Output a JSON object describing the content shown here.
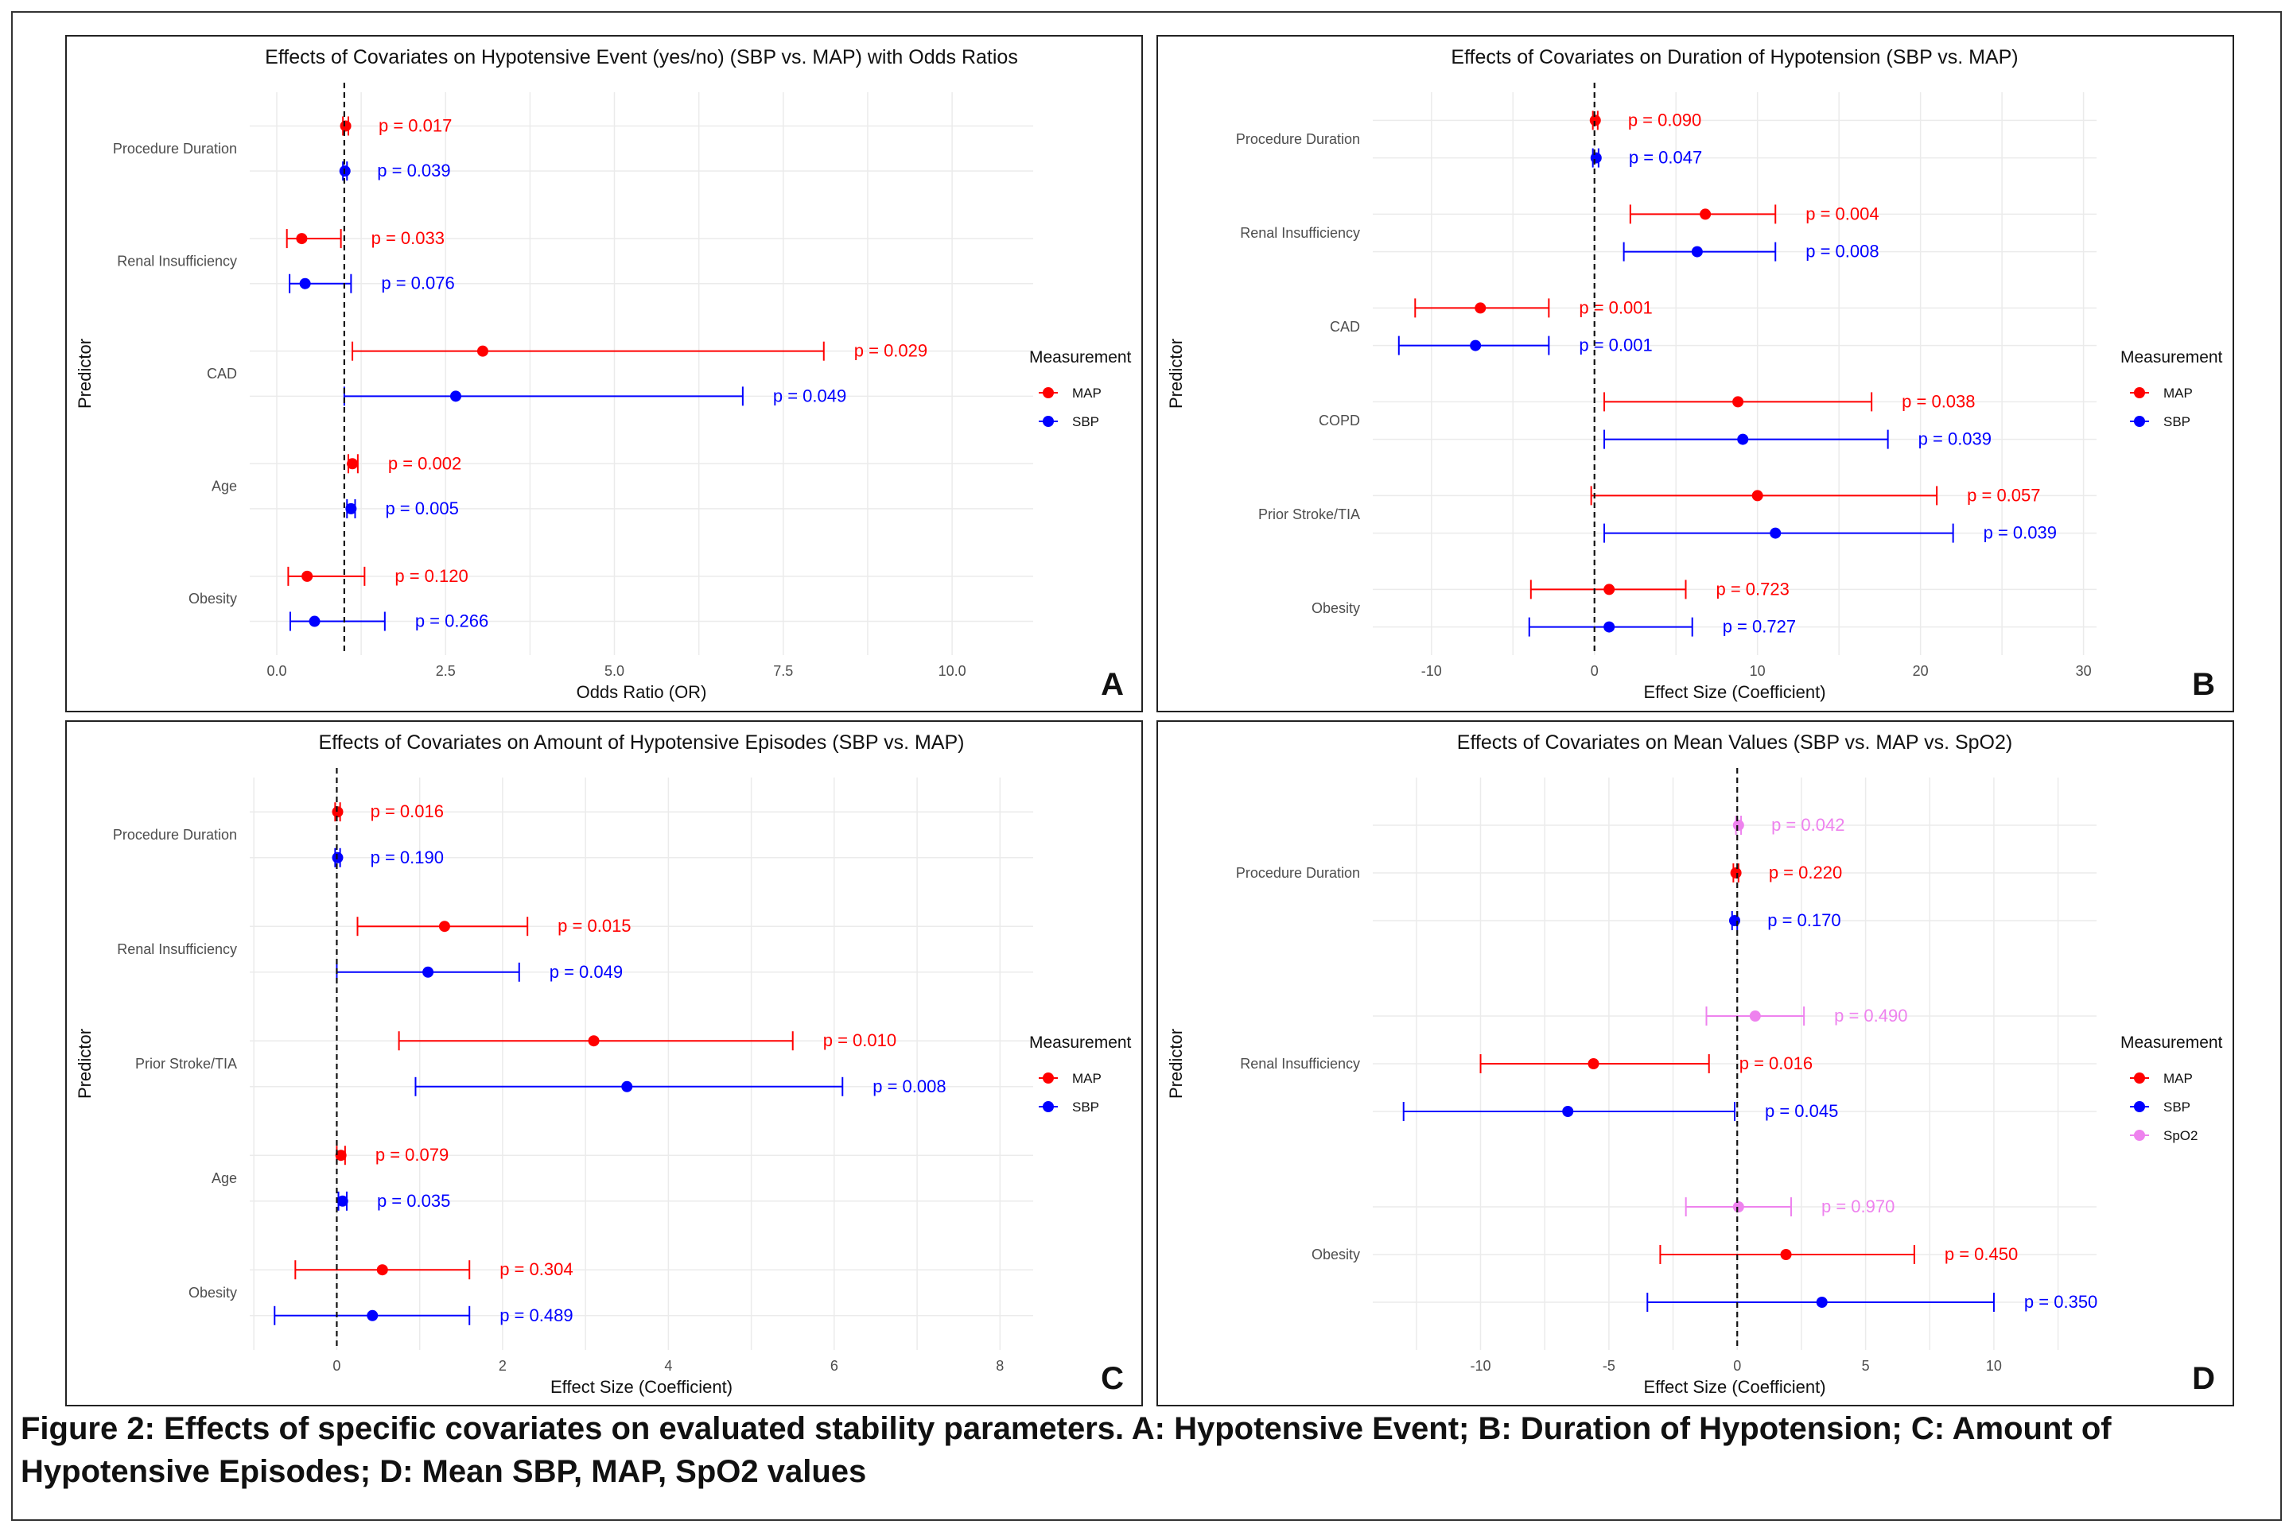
{
  "colors": {
    "MAP": "#ff0000",
    "SBP": "#0000ff",
    "SpO2": "#ee82ee"
  },
  "caption": "Figure 2: Effects of specific covariates on evaluated stability parameters. A: Hypotensive Event; B: Duration of Hypotension; C: Amount of Hypotensive Episodes; D: Mean SBP, MAP, SpO2 values",
  "chart_data": [
    {
      "panel_letter": "A",
      "type": "forest",
      "title": "Effects of Covariates on Hypotensive Event (yes/no) (SBP vs. MAP) with Odds Ratios",
      "xlabel": "Odds Ratio (OR)",
      "ylabel": "Predictor",
      "xlim": [
        -0.4,
        11.2
      ],
      "xticks": [
        0,
        2.5,
        5,
        7.5,
        10
      ],
      "xtick_labels": [
        "0.0",
        "2.5",
        "5.0",
        "7.5",
        "10.0"
      ],
      "ref_line": 1,
      "grid": true,
      "legend_title": "Measurement",
      "legend": [
        "MAP",
        "SBP"
      ],
      "legend_position": "right",
      "predictors": [
        "Procedure Duration",
        "Renal Insufficiency",
        "CAD",
        "Age",
        "Obesity"
      ],
      "series": [
        {
          "name": "MAP",
          "points": [
            {
              "predictor": "Procedure Duration",
              "estimate": 1.02,
              "lower": 0.98,
              "upper": 1.06,
              "p_label": "p = 0.017"
            },
            {
              "predictor": "Renal Insufficiency",
              "estimate": 0.37,
              "lower": 0.15,
              "upper": 0.95,
              "p_label": "p = 0.033"
            },
            {
              "predictor": "CAD",
              "estimate": 3.05,
              "lower": 1.12,
              "upper": 8.1,
              "p_label": "p = 0.029"
            },
            {
              "predictor": "Age",
              "estimate": 1.12,
              "lower": 1.06,
              "upper": 1.2,
              "p_label": "p = 0.002"
            },
            {
              "predictor": "Obesity",
              "estimate": 0.45,
              "lower": 0.17,
              "upper": 1.3,
              "p_label": "p = 0.120"
            }
          ]
        },
        {
          "name": "SBP",
          "points": [
            {
              "predictor": "Procedure Duration",
              "estimate": 1.01,
              "lower": 0.98,
              "upper": 1.04,
              "p_label": "p = 0.039"
            },
            {
              "predictor": "Renal Insufficiency",
              "estimate": 0.42,
              "lower": 0.19,
              "upper": 1.1,
              "p_label": "p = 0.076"
            },
            {
              "predictor": "CAD",
              "estimate": 2.65,
              "lower": 1.0,
              "upper": 6.9,
              "p_label": "p = 0.049"
            },
            {
              "predictor": "Age",
              "estimate": 1.1,
              "lower": 1.04,
              "upper": 1.16,
              "p_label": "p = 0.005"
            },
            {
              "predictor": "Obesity",
              "estimate": 0.56,
              "lower": 0.2,
              "upper": 1.6,
              "p_label": "p = 0.266"
            }
          ]
        }
      ]
    },
    {
      "panel_letter": "B",
      "type": "forest",
      "title": "Effects of Covariates on Duration of Hypotension (SBP vs. MAP)",
      "xlabel": "Effect Size (Coefficient)",
      "ylabel": "Predictor",
      "xlim": [
        -13.6,
        30.8
      ],
      "xticks": [
        -10,
        0,
        10,
        20,
        30
      ],
      "xtick_labels": [
        "-10",
        "0",
        "10",
        "20",
        "30"
      ],
      "ref_line": 0,
      "grid": true,
      "legend_title": "Measurement",
      "legend": [
        "MAP",
        "SBP"
      ],
      "legend_position": "right",
      "predictors": [
        "Procedure Duration",
        "Renal Insufficiency",
        "CAD",
        "COPD",
        "Prior Stroke/TIA",
        "Obesity"
      ],
      "series": [
        {
          "name": "MAP",
          "points": [
            {
              "predictor": "Procedure Duration",
              "estimate": 0.05,
              "lower": -0.1,
              "upper": 0.2,
              "p_label": "p = 0.090"
            },
            {
              "predictor": "Renal Insufficiency",
              "estimate": 6.8,
              "lower": 2.2,
              "upper": 11.1,
              "p_label": "p = 0.004"
            },
            {
              "predictor": "CAD",
              "estimate": -7.0,
              "lower": -11.0,
              "upper": -2.8,
              "p_label": "p = 0.001"
            },
            {
              "predictor": "COPD",
              "estimate": 8.8,
              "lower": 0.6,
              "upper": 17.0,
              "p_label": "p = 0.038"
            },
            {
              "predictor": "Prior Stroke/TIA",
              "estimate": 10.0,
              "lower": -0.2,
              "upper": 21.0,
              "p_label": "p = 0.057"
            },
            {
              "predictor": "Obesity",
              "estimate": 0.9,
              "lower": -3.9,
              "upper": 5.6,
              "p_label": "p = 0.723"
            }
          ]
        },
        {
          "name": "SBP",
          "points": [
            {
              "predictor": "Procedure Duration",
              "estimate": 0.1,
              "lower": -0.1,
              "upper": 0.25,
              "p_label": "p = 0.047"
            },
            {
              "predictor": "Renal Insufficiency",
              "estimate": 6.3,
              "lower": 1.8,
              "upper": 11.1,
              "p_label": "p = 0.008"
            },
            {
              "predictor": "CAD",
              "estimate": -7.3,
              "lower": -12.0,
              "upper": -2.8,
              "p_label": "p = 0.001"
            },
            {
              "predictor": "COPD",
              "estimate": 9.1,
              "lower": 0.6,
              "upper": 18.0,
              "p_label": "p = 0.039"
            },
            {
              "predictor": "Prior Stroke/TIA",
              "estimate": 11.1,
              "lower": 0.6,
              "upper": 22.0,
              "p_label": "p = 0.039"
            },
            {
              "predictor": "Obesity",
              "estimate": 0.9,
              "lower": -4.0,
              "upper": 6.0,
              "p_label": "p = 0.727"
            }
          ]
        }
      ]
    },
    {
      "panel_letter": "C",
      "type": "forest",
      "title": "Effects of Covariates on Amount of Hypotensive Episodes (SBP vs. MAP)",
      "xlabel": "Effect Size (Coefficient)",
      "ylabel": "Predictor",
      "xlim": [
        -1.05,
        8.4
      ],
      "xticks": [
        0,
        2,
        4,
        6,
        8
      ],
      "xtick_labels": [
        "0",
        "2",
        "4",
        "6",
        "8"
      ],
      "ref_line": 0,
      "grid": true,
      "legend_title": "Measurement",
      "legend": [
        "MAP",
        "SBP"
      ],
      "legend_position": "right",
      "predictors": [
        "Procedure Duration",
        "Renal Insufficiency",
        "Prior Stroke/TIA",
        "Age",
        "Obesity"
      ],
      "series": [
        {
          "name": "MAP",
          "points": [
            {
              "predictor": "Procedure Duration",
              "estimate": 0.01,
              "lower": -0.02,
              "upper": 0.04,
              "p_label": "p = 0.016"
            },
            {
              "predictor": "Renal Insufficiency",
              "estimate": 1.3,
              "lower": 0.25,
              "upper": 2.3,
              "p_label": "p = 0.015"
            },
            {
              "predictor": "Prior Stroke/TIA",
              "estimate": 3.1,
              "lower": 0.75,
              "upper": 5.5,
              "p_label": "p = 0.010"
            },
            {
              "predictor": "Age",
              "estimate": 0.05,
              "lower": 0.0,
              "upper": 0.1,
              "p_label": "p = 0.079"
            },
            {
              "predictor": "Obesity",
              "estimate": 0.55,
              "lower": -0.5,
              "upper": 1.6,
              "p_label": "p = 0.304"
            }
          ]
        },
        {
          "name": "SBP",
          "points": [
            {
              "predictor": "Procedure Duration",
              "estimate": 0.01,
              "lower": -0.02,
              "upper": 0.04,
              "p_label": "p = 0.190"
            },
            {
              "predictor": "Renal Insufficiency",
              "estimate": 1.1,
              "lower": 0.0,
              "upper": 2.2,
              "p_label": "p = 0.049"
            },
            {
              "predictor": "Prior Stroke/TIA",
              "estimate": 3.5,
              "lower": 0.95,
              "upper": 6.1,
              "p_label": "p = 0.008"
            },
            {
              "predictor": "Age",
              "estimate": 0.07,
              "lower": 0.02,
              "upper": 0.12,
              "p_label": "p = 0.035"
            },
            {
              "predictor": "Obesity",
              "estimate": 0.43,
              "lower": -0.75,
              "upper": 1.6,
              "p_label": "p = 0.489"
            }
          ]
        }
      ]
    },
    {
      "panel_letter": "D",
      "type": "forest",
      "title": "Effects of Covariates on Mean Values (SBP vs. MAP vs. SpO2)",
      "xlabel": "Effect Size (Coefficient)",
      "ylabel": "Predictor",
      "xlim": [
        -14.2,
        14.0
      ],
      "xticks": [
        -10,
        -5,
        0,
        5,
        10
      ],
      "xtick_labels": [
        "-10",
        "-5",
        "0",
        "5",
        "10"
      ],
      "ref_line": 0,
      "grid": true,
      "legend_title": "Measurement",
      "legend": [
        "MAP",
        "SBP",
        "SpO2"
      ],
      "legend_position": "right",
      "predictors": [
        "Procedure Duration",
        "Renal Insufficiency",
        "Obesity"
      ],
      "series": [
        {
          "name": "SpO2",
          "points": [
            {
              "predictor": "Procedure Duration",
              "estimate": 0.05,
              "lower": -0.05,
              "upper": 0.15,
              "p_label": "p = 0.042"
            },
            {
              "predictor": "Renal Insufficiency",
              "estimate": 0.7,
              "lower": -1.2,
              "upper": 2.6,
              "p_label": "p = 0.490"
            },
            {
              "predictor": "Obesity",
              "estimate": 0.05,
              "lower": -2.0,
              "upper": 2.1,
              "p_label": "p = 0.970"
            }
          ]
        },
        {
          "name": "MAP",
          "points": [
            {
              "predictor": "Procedure Duration",
              "estimate": -0.05,
              "lower": -0.15,
              "upper": 0.05,
              "p_label": "p = 0.220"
            },
            {
              "predictor": "Renal Insufficiency",
              "estimate": -5.6,
              "lower": -10.0,
              "upper": -1.1,
              "p_label": "p = 0.016"
            },
            {
              "predictor": "Obesity",
              "estimate": 1.9,
              "lower": -3.0,
              "upper": 6.9,
              "p_label": "p = 0.450"
            }
          ]
        },
        {
          "name": "SBP",
          "points": [
            {
              "predictor": "Procedure Duration",
              "estimate": -0.1,
              "lower": -0.2,
              "upper": 0.0,
              "p_label": "p = 0.170"
            },
            {
              "predictor": "Renal Insufficiency",
              "estimate": -6.6,
              "lower": -13.0,
              "upper": -0.1,
              "p_label": "p = 0.045"
            },
            {
              "predictor": "Obesity",
              "estimate": 3.3,
              "lower": -3.5,
              "upper": 10.0,
              "p_label": "p = 0.350"
            }
          ]
        }
      ]
    }
  ]
}
